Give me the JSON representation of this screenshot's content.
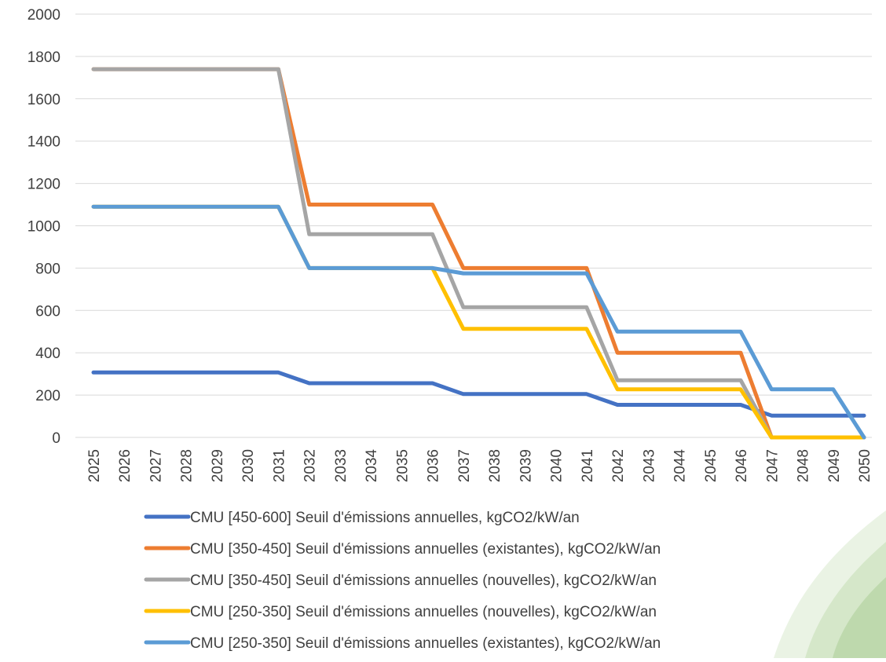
{
  "chart_data": {
    "type": "line",
    "title": "",
    "xlabel": "",
    "ylabel": "",
    "ylim": [
      0,
      2000
    ],
    "yticks": [
      "0",
      "200",
      "400",
      "600",
      "800",
      "1000",
      "1200",
      "1400",
      "1600",
      "1800",
      "2000"
    ],
    "grid": true,
    "legend_position": "bottom",
    "x": [
      "2025",
      "2026",
      "2027",
      "2028",
      "2029",
      "2030",
      "2031",
      "2032",
      "2033",
      "2034",
      "2035",
      "2036",
      "2037",
      "2038",
      "2039",
      "2040",
      "2041",
      "2042",
      "2043",
      "2044",
      "2045",
      "2046",
      "2047",
      "2048",
      "2049",
      "2050"
    ],
    "series": [
      {
        "name": "CMU [450-600] Seuil d'émissions annuelles, kgCO2/kW/an",
        "color": "#4472C4",
        "values": [
          307,
          307,
          307,
          307,
          307,
          307,
          307,
          256,
          256,
          256,
          256,
          256,
          205,
          205,
          205,
          205,
          205,
          154,
          154,
          154,
          154,
          154,
          103,
          103,
          103,
          103
        ]
      },
      {
        "name": "CMU [350-450] Seuil d'émissions annuelles (existantes), kgCO2/kW/an",
        "color": "#ED7D31",
        "values": [
          1740,
          1740,
          1740,
          1740,
          1740,
          1740,
          1740,
          1100,
          1100,
          1100,
          1100,
          1100,
          800,
          800,
          800,
          800,
          800,
          400,
          400,
          400,
          400,
          400,
          0,
          0,
          0,
          0
        ]
      },
      {
        "name": "CMU [350-450] Seuil d'émissions annuelles (nouvelles), kgCO2/kW/an",
        "color": "#A5A5A5",
        "values": [
          1740,
          1740,
          1740,
          1740,
          1740,
          1740,
          1740,
          960,
          960,
          960,
          960,
          960,
          615,
          615,
          615,
          615,
          615,
          270,
          270,
          270,
          270,
          270,
          0,
          0,
          0,
          0
        ]
      },
      {
        "name": "CMU [250-350] Seuil d'émissions annuelles (nouvelles), kgCO2/kW/an",
        "color": "#FFC000",
        "values": [
          1090,
          1090,
          1090,
          1090,
          1090,
          1090,
          1090,
          800,
          800,
          800,
          800,
          800,
          513,
          513,
          513,
          513,
          513,
          227,
          227,
          227,
          227,
          227,
          0,
          0,
          0,
          0
        ]
      },
      {
        "name": "CMU [250-350] Seuil d'émissions annuelles (existantes), kgCO2/kW/an",
        "color": "#5B9BD5",
        "values": [
          1090,
          1090,
          1090,
          1090,
          1090,
          1090,
          1090,
          800,
          800,
          800,
          800,
          800,
          775,
          775,
          775,
          775,
          775,
          500,
          500,
          500,
          500,
          500,
          227,
          227,
          227,
          0
        ]
      }
    ]
  },
  "colors": {
    "gridline": "#D9D9D9",
    "text": "#404040",
    "decor_green": "#8DBF6A"
  }
}
